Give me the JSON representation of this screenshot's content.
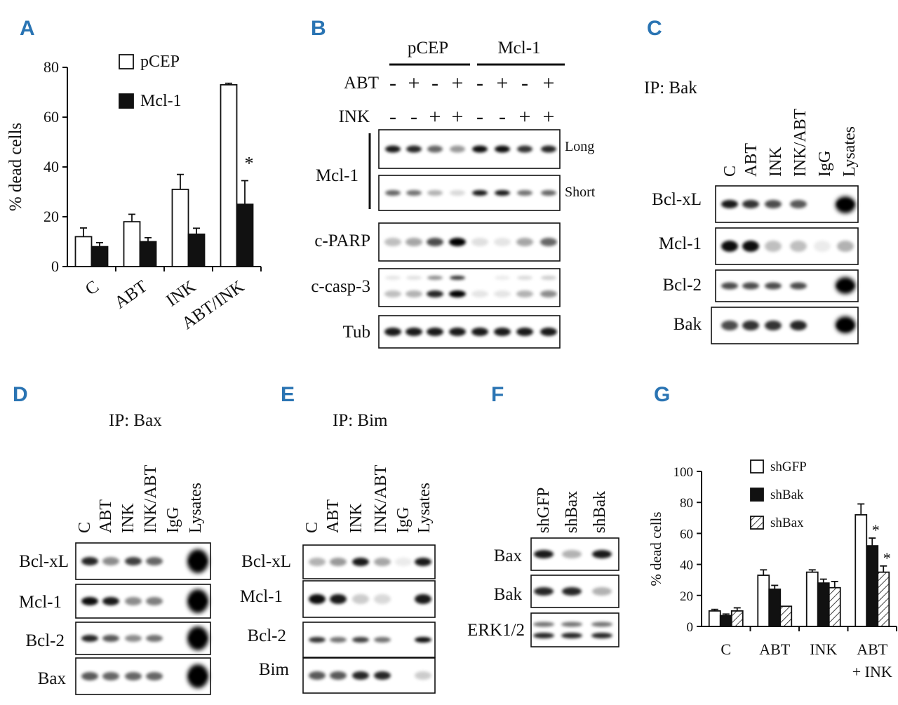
{
  "panels": {
    "A": {
      "letter": "A",
      "chart_data": {
        "type": "bar",
        "ylabel": "% dead cells",
        "ylim": [
          0,
          80
        ],
        "yticks": [
          "0",
          "20",
          "40",
          "60",
          "80"
        ],
        "categories": [
          "C",
          "ABT",
          "INK",
          "ABT/INK"
        ],
        "series": [
          {
            "name": "pCEP",
            "values": [
              12,
              18,
              31,
              73
            ],
            "errors": [
              3.5,
              3,
              6,
              0.6
            ],
            "fill": "open"
          },
          {
            "name": "Mcl-1",
            "values": [
              8,
              10,
              13,
              25
            ],
            "errors": [
              1.6,
              1.6,
              2.4,
              9.5
            ],
            "fill": "solid"
          }
        ],
        "significance": [
          {
            "category": "ABT/INK",
            "series": "Mcl-1",
            "mark": "*"
          }
        ]
      }
    },
    "B": {
      "letter": "B",
      "groups": [
        "pCEP",
        "Mcl-1"
      ],
      "treatments": [
        {
          "label": "ABT",
          "signs": [
            "-",
            "+",
            "-",
            "+",
            "-",
            "+",
            "-",
            "+"
          ]
        },
        {
          "label": "INK",
          "signs": [
            "-",
            "-",
            "+",
            "+",
            "-",
            "-",
            "+",
            "+"
          ]
        }
      ],
      "mcl1_label": "Mcl-1",
      "exposures": [
        "Long",
        "Short"
      ],
      "blots": [
        "c-PARP",
        "c-casp-3",
        "Tub"
      ]
    },
    "C": {
      "letter": "C",
      "title": "IP: Bak",
      "lanes": [
        "C",
        "ABT",
        "INK",
        "INK/ABT",
        "IgG",
        "Lysates"
      ],
      "blots": [
        "Bcl-xL",
        "Mcl-1",
        "Bcl-2",
        "Bak"
      ]
    },
    "D": {
      "letter": "D",
      "title": "IP: Bax",
      "lanes": [
        "C",
        "ABT",
        "INK",
        "INK/ABT",
        "IgG",
        "Lysates"
      ],
      "blots": [
        "Bcl-xL",
        "Mcl-1",
        "Bcl-2",
        "Bax"
      ]
    },
    "E": {
      "letter": "E",
      "title": "IP: Bim",
      "lanes": [
        "C",
        "ABT",
        "INK",
        "INK/ABT",
        "IgG",
        "Lysates"
      ],
      "blots": [
        "Bcl-xL",
        "Mcl-1",
        "Bcl-2",
        "Bim"
      ]
    },
    "F": {
      "letter": "F",
      "lanes": [
        "shGFP",
        "shBax",
        "shBak"
      ],
      "blots": [
        "Bax",
        "Bak",
        "ERK1/2"
      ]
    },
    "G": {
      "letter": "G",
      "chart_data": {
        "type": "bar",
        "ylabel": "% dead cells",
        "ylim": [
          0,
          100
        ],
        "yticks": [
          "0",
          "20",
          "40",
          "60",
          "80",
          "100"
        ],
        "categories": [
          "C",
          "ABT",
          "INK",
          "ABT"
        ],
        "category_sublabel": [
          "",
          "",
          "",
          "+ INK"
        ],
        "series": [
          {
            "name": "shGFP",
            "values": [
              10,
              33,
              35,
              72
            ],
            "errors": [
              1,
              3.5,
              1.5,
              7
            ],
            "fill": "open"
          },
          {
            "name": "shBak",
            "values": [
              7,
              24,
              28,
              52
            ],
            "errors": [
              1,
              2.5,
              2.5,
              5
            ],
            "fill": "solid"
          },
          {
            "name": "shBax",
            "values": [
              10,
              13,
              25,
              35
            ],
            "errors": [
              2,
              0,
              4,
              4
            ],
            "fill": "hatched"
          }
        ],
        "significance": [
          {
            "category": "ABT",
            "series": "shBak",
            "mark": "*"
          },
          {
            "category": "ABT",
            "series": "shBax",
            "mark": "*"
          }
        ]
      }
    }
  }
}
